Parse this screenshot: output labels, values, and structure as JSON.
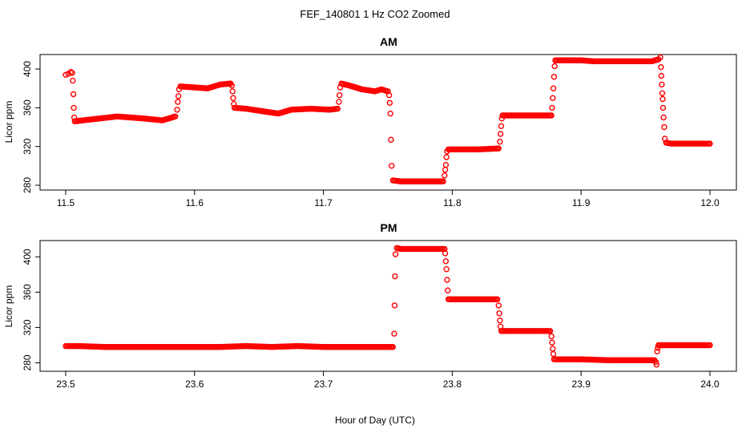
{
  "figure": {
    "title": "FEF_140801  1 Hz CO2 Zoomed",
    "xlabel": "Hour of Day (UTC)",
    "point_color": "#ff0000"
  },
  "chart_data": [
    {
      "type": "scatter",
      "title": "AM",
      "xlabel": "",
      "ylabel": "Licor ppm",
      "xlim": [
        11.5,
        12.0
      ],
      "ylim": [
        280,
        410
      ],
      "xticks": [
        11.5,
        11.6,
        11.7,
        11.8,
        11.9,
        12.0
      ],
      "xtick_labels": [
        "11.5",
        "11.6",
        "11.7",
        "11.8",
        "11.9",
        "12.0"
      ],
      "yticks": [
        280,
        320,
        360,
        400
      ],
      "ytick_labels": [
        "280",
        "320",
        "360",
        "400"
      ],
      "grid": false,
      "series": [
        {
          "marker": "open-circle",
          "color": "#ff0000",
          "points": [
            [
              11.5,
              394
            ],
            [
              11.502,
              395
            ],
            [
              11.504,
              397
            ],
            [
              11.505,
              396
            ],
            [
              11.5055,
              388
            ],
            [
              11.506,
              374
            ],
            [
              11.5063,
              360
            ],
            [
              11.5066,
              350
            ],
            [
              11.507,
              346
            ],
            [
              11.52,
              348
            ],
            [
              11.54,
              351
            ],
            [
              11.56,
              349
            ],
            [
              11.575,
              347
            ],
            [
              11.58,
              349
            ],
            [
              11.585,
              351
            ],
            [
              11.5865,
              358
            ],
            [
              11.587,
              366
            ],
            [
              11.5875,
              372
            ],
            [
              11.588,
              379
            ],
            [
              11.589,
              382
            ],
            [
              11.6,
              381
            ],
            [
              11.61,
              380
            ],
            [
              11.62,
              384
            ],
            [
              11.628,
              385
            ],
            [
              11.629,
              383
            ],
            [
              11.6295,
              377
            ],
            [
              11.63,
              370
            ],
            [
              11.6305,
              364
            ],
            [
              11.631,
              360
            ],
            [
              11.64,
              359
            ],
            [
              11.65,
              357
            ],
            [
              11.66,
              355
            ],
            [
              11.665,
              354
            ],
            [
              11.675,
              358
            ],
            [
              11.69,
              359
            ],
            [
              11.705,
              358
            ],
            [
              11.711,
              359
            ],
            [
              11.712,
              366
            ],
            [
              11.7125,
              373
            ],
            [
              11.713,
              381
            ],
            [
              11.714,
              385
            ],
            [
              11.72,
              383
            ],
            [
              11.73,
              379
            ],
            [
              11.74,
              377
            ],
            [
              11.745,
              379
            ],
            [
              11.75,
              377
            ],
            [
              11.751,
              373
            ],
            [
              11.7515,
              365
            ],
            [
              11.752,
              354
            ],
            [
              11.7525,
              327
            ],
            [
              11.753,
              300
            ],
            [
              11.754,
              285
            ],
            [
              11.76,
              284
            ],
            [
              11.77,
              284
            ],
            [
              11.78,
              284
            ],
            [
              11.793,
              284
            ],
            [
              11.794,
              290
            ],
            [
              11.7945,
              296
            ],
            [
              11.795,
              301
            ],
            [
              11.7955,
              309
            ],
            [
              11.796,
              315
            ],
            [
              11.797,
              317
            ],
            [
              11.81,
              317
            ],
            [
              11.82,
              317
            ],
            [
              11.836,
              318
            ],
            [
              11.837,
              325
            ],
            [
              11.8375,
              333
            ],
            [
              11.838,
              341
            ],
            [
              11.8385,
              349
            ],
            [
              11.839,
              352
            ],
            [
              11.85,
              352
            ],
            [
              11.86,
              352
            ],
            [
              11.877,
              352
            ],
            [
              11.8775,
              360
            ],
            [
              11.878,
              370
            ],
            [
              11.8785,
              380
            ],
            [
              11.879,
              392
            ],
            [
              11.8795,
              403
            ],
            [
              11.88,
              409
            ],
            [
              11.89,
              409
            ],
            [
              11.9,
              409
            ],
            [
              11.91,
              408
            ],
            [
              11.92,
              408
            ],
            [
              11.94,
              408
            ],
            [
              11.955,
              408
            ],
            [
              11.96,
              410
            ],
            [
              11.9615,
              412
            ],
            [
              11.962,
              402
            ],
            [
              11.9623,
              393
            ],
            [
              11.9626,
              384
            ],
            [
              11.963,
              375
            ],
            [
              11.9633,
              369
            ],
            [
              11.9636,
              360
            ],
            [
              11.964,
              350
            ],
            [
              11.9645,
              340
            ],
            [
              11.965,
              328
            ],
            [
              11.966,
              324
            ],
            [
              11.97,
              323
            ],
            [
              11.98,
              323
            ],
            [
              11.99,
              323
            ],
            [
              12.0,
              323
            ]
          ]
        }
      ]
    },
    {
      "type": "scatter",
      "title": "PM",
      "xlabel": "",
      "ylabel": "Licor ppm",
      "xlim": [
        23.5,
        24.0
      ],
      "ylim": [
        275,
        413
      ],
      "xticks": [
        23.5,
        23.6,
        23.7,
        23.8,
        23.9,
        24.0
      ],
      "xtick_labels": [
        "23.5",
        "23.6",
        "23.7",
        "23.8",
        "23.9",
        "24.0"
      ],
      "yticks": [
        280,
        320,
        360,
        400
      ],
      "ytick_labels": [
        "280",
        "320",
        "360",
        "400"
      ],
      "grid": false,
      "series": [
        {
          "marker": "open-circle",
          "color": "#ff0000",
          "points": [
            [
              23.5,
              299
            ],
            [
              23.51,
              299
            ],
            [
              23.53,
              298
            ],
            [
              23.55,
              298
            ],
            [
              23.57,
              298
            ],
            [
              23.6,
              298
            ],
            [
              23.62,
              298
            ],
            [
              23.64,
              299
            ],
            [
              23.66,
              298
            ],
            [
              23.68,
              299
            ],
            [
              23.7,
              298
            ],
            [
              23.72,
              298
            ],
            [
              23.74,
              298
            ],
            [
              23.754,
              298
            ],
            [
              23.755,
              313
            ],
            [
              23.7553,
              345
            ],
            [
              23.7556,
              378
            ],
            [
              23.756,
              403
            ],
            [
              23.757,
              410
            ],
            [
              23.76,
              409
            ],
            [
              23.77,
              409
            ],
            [
              23.78,
              409
            ],
            [
              23.794,
              409
            ],
            [
              23.7945,
              404
            ],
            [
              23.795,
              395
            ],
            [
              23.7955,
              386
            ],
            [
              23.796,
              374
            ],
            [
              23.7965,
              362
            ],
            [
              23.797,
              352
            ],
            [
              23.81,
              352
            ],
            [
              23.82,
              352
            ],
            [
              23.835,
              352
            ],
            [
              23.836,
              345
            ],
            [
              23.8365,
              336
            ],
            [
              23.837,
              328
            ],
            [
              23.8375,
              321
            ],
            [
              23.838,
              316
            ],
            [
              23.85,
              316
            ],
            [
              23.86,
              316
            ],
            [
              23.876,
              316
            ],
            [
              23.877,
              310
            ],
            [
              23.8775,
              303
            ],
            [
              23.878,
              296
            ],
            [
              23.8785,
              290
            ],
            [
              23.879,
              284
            ],
            [
              23.89,
              284
            ],
            [
              23.9,
              284
            ],
            [
              23.92,
              283
            ],
            [
              23.94,
              283
            ],
            [
              23.957,
              283
            ],
            [
              23.958,
              281
            ],
            [
              23.9585,
              278
            ],
            [
              23.959,
              293
            ],
            [
              23.9595,
              297
            ],
            [
              23.96,
              300
            ],
            [
              23.97,
              300
            ],
            [
              23.98,
              300
            ],
            [
              23.99,
              300
            ],
            [
              24.0,
              300
            ]
          ]
        }
      ]
    }
  ]
}
